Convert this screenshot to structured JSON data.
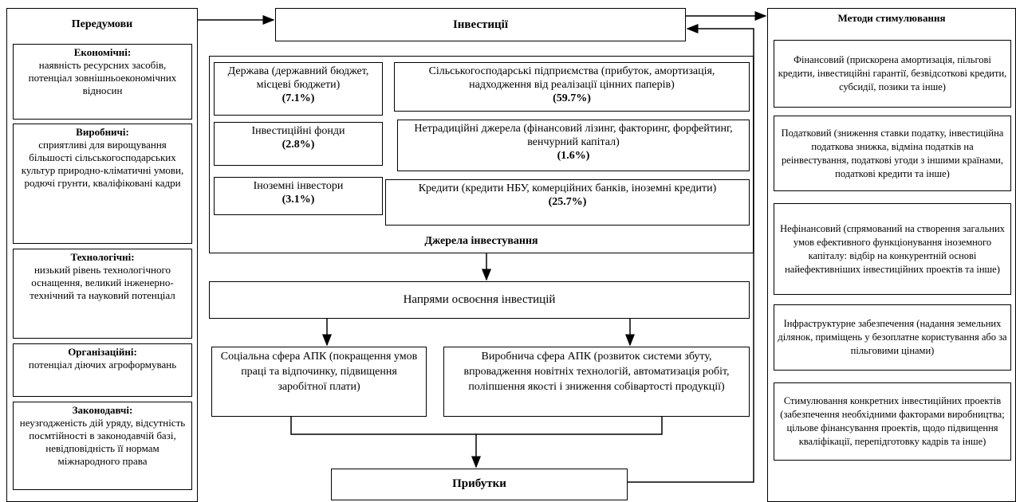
{
  "left": {
    "title": "Передумови",
    "items": [
      {
        "heading": "Економічні:",
        "text": "наявність ресурсних засобів, потенціал зовнішньоекономічних відносин"
      },
      {
        "heading": "Виробничі:",
        "text": "сприятливі для вирощування більшості сільськогосподарських культур природно-кліматичні умови, родючі грунти, кваліфіковані кадри"
      },
      {
        "heading": "Технологічні:",
        "text": "низький рівень технологічного оснащення, великий інженерно-технічний та науковий потенціал"
      },
      {
        "heading": "Організаційні:",
        "text": "потенціал діючих агроформувань"
      },
      {
        "heading": "Законодавчі:",
        "text": "неузгодженість дій уряду, відсутність посмтійності в законодавчій базі, невідповідність її нормам міжнародного права"
      }
    ]
  },
  "center": {
    "title": "Інвестиції",
    "sources": {
      "label": "Джерела інвестування",
      "items": [
        {
          "text": "Держава (державний бюджет, місцеві бюджети)",
          "share": "(7.1%)"
        },
        {
          "text": "Сільськогосподарські підприємства (прибуток, амортизація, надходження від реалізації цінних паперів)",
          "share": "(59.7%)"
        },
        {
          "text": "Інвестиційні фонди",
          "share": "(2.8%)"
        },
        {
          "text": "Нетрадиційні джерела (фінансовий лізинг, факторинг, форфейтинг, венчурний капітал)",
          "share": "(1.6%)"
        },
        {
          "text": "Іноземні інвестори",
          "share": "(3.1%)"
        },
        {
          "text": "Кредити (кредити НБУ, комерційних банків, іноземні кредити)",
          "share": "(25.7%)"
        }
      ]
    },
    "directions": "Напрями освоєння  інвестицій",
    "social": "Соціальна сфера АПК (покращення умов праці та відпочинку, підвищення заробітної плати)",
    "production": "Виробнича сфера АПК (розвиток системи збуту, впровадження новітніх технологій, автоматизація робіт, поліпшення якості і зниження собівартості продукції)",
    "profit": "Прибутки"
  },
  "right": {
    "title": "Методи стимулювання",
    "items": [
      "Фінансовий (прискорена амортизація, пільгові кредити, інвестиційні гарантії, безвідсоткові кредити, субсидії, позики та інше)",
      "Податковий (зниження ставки податку, інвестиційна податкова знижка, відміна податків на реінвестування, податкові угоди з іншими країнами, податкові кредити та інше)",
      "Нефінансовий (спрямований на створення загальних  умов ефективного функціонування іноземного капіталу: відбір на конкурентній основі найефективніших інвестиційних проектів та інше)",
      "Інфраструктурне забезпечення (надання земельних ділянок, приміщень у безоплатне користування або за пільговими цінами)",
      "Стимулювання конкретних інвестиційних проектів (забезпечення необхідними факторами виробництва; цільове фінансування проектів, щодо підвищення кваліфікації, перепідготовку кадрів та інше)"
    ]
  }
}
